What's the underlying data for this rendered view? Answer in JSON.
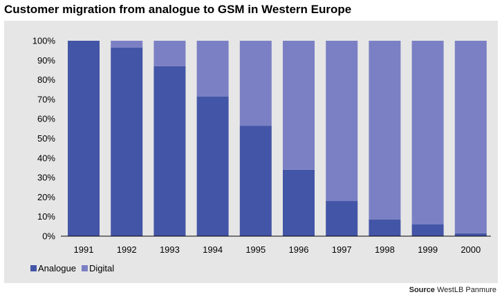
{
  "chart_data": {
    "type": "bar",
    "stacked": true,
    "title": "Customer migration from analogue to GSM in Western Europe",
    "categories": [
      "1991",
      "1992",
      "1993",
      "1994",
      "1995",
      "1996",
      "1997",
      "1998",
      "1999",
      "2000"
    ],
    "series": [
      {
        "name": "Analogue",
        "color": "#4355a6",
        "values": [
          100,
          96.5,
          87,
          71.5,
          56.5,
          34,
          18,
          8.5,
          6,
          1.5
        ]
      },
      {
        "name": "Digital",
        "color": "#7b80c4",
        "values": [
          0,
          3.5,
          13,
          28.5,
          43.5,
          66,
          82,
          91.5,
          94,
          98.5
        ]
      }
    ],
    "ylim": [
      0,
      100
    ],
    "yticks": [
      "0%",
      "10%",
      "20%",
      "30%",
      "40%",
      "50%",
      "60%",
      "70%",
      "80%",
      "90%",
      "100%"
    ],
    "grid": false,
    "legend": "bottom-left"
  },
  "source": {
    "label": "Source",
    "text": "WestLB Panmure"
  }
}
